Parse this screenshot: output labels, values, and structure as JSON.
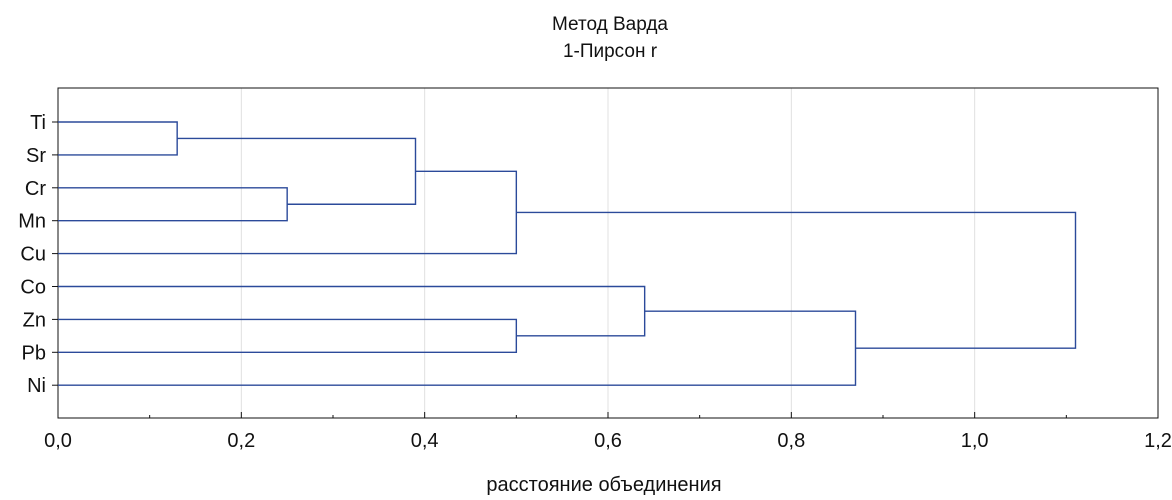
{
  "chart_data": {
    "type": "dendrogram",
    "title": "Метод Варда",
    "subtitle": "1-Пирсон r",
    "xlabel": "расстояние объединения",
    "xlim": [
      0,
      1.2
    ],
    "x_ticks": [
      0.0,
      0.2,
      0.4,
      0.6,
      0.8,
      1.0,
      1.2
    ],
    "x_tick_labels": [
      "0,0",
      "0,2",
      "0,4",
      "0,6",
      "0,8",
      "1,0",
      "1,2"
    ],
    "grid": "vertical",
    "line_color": "#2b4a9a",
    "leaves": [
      "Ti",
      "Sr",
      "Cr",
      "Mn",
      "Cu",
      "Co",
      "Zn",
      "Pb",
      "Ni"
    ],
    "merges": [
      {
        "a": "Ti",
        "b": "Sr",
        "distance": 0.13
      },
      {
        "a": "Cr",
        "b": "Mn",
        "distance": 0.25
      },
      {
        "a": "Ti+Sr",
        "b": "Cr+Mn",
        "distance": 0.39
      },
      {
        "a": "Ti+Sr+Cr+Mn",
        "b": "Cu",
        "distance": 0.5
      },
      {
        "a": "Zn",
        "b": "Pb",
        "distance": 0.5
      },
      {
        "a": "Co",
        "b": "Zn+Pb",
        "distance": 0.64
      },
      {
        "a": "Co+Zn+Pb",
        "b": "Ni",
        "distance": 0.87
      },
      {
        "a": "Ti+Sr+Cr+Mn+Cu",
        "b": "Co+Zn+Pb+Ni",
        "distance": 1.11
      }
    ]
  }
}
